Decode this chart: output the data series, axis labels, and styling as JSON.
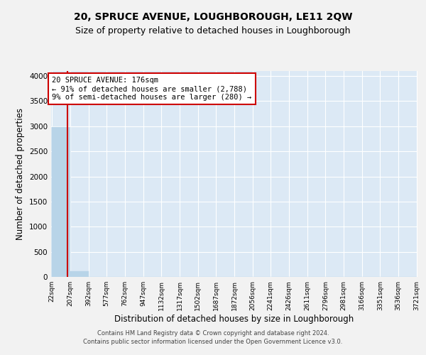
{
  "title": "20, SPRUCE AVENUE, LOUGHBOROUGH, LE11 2QW",
  "subtitle": "Size of property relative to detached houses in Loughborough",
  "xlabel": "Distribution of detached houses by size in Loughborough",
  "ylabel": "Number of detached properties",
  "footer_line1": "Contains HM Land Registry data © Crown copyright and database right 2024.",
  "footer_line2": "Contains public sector information licensed under the Open Government Licence v3.0.",
  "bin_edges": [
    22,
    207,
    392,
    577,
    762,
    947,
    1132,
    1317,
    1502,
    1687,
    1872,
    2056,
    2241,
    2426,
    2611,
    2796,
    2981,
    3166,
    3351,
    3536,
    3721
  ],
  "bar_heights": [
    2980,
    110,
    0,
    0,
    0,
    0,
    0,
    0,
    0,
    0,
    0,
    0,
    0,
    0,
    0,
    0,
    0,
    0,
    0,
    0
  ],
  "bar_color": "#b8d4e8",
  "bar_edgecolor": "#b8d4e8",
  "property_size": 176,
  "annotation_line1": "20 SPRUCE AVENUE: 176sqm",
  "annotation_line2": "← 91% of detached houses are smaller (2,788)",
  "annotation_line3": "9% of semi-detached houses are larger (280) →",
  "red_line_color": "#cc0000",
  "annotation_box_edgecolor": "#cc0000",
  "annotation_box_facecolor": "#ffffff",
  "ylim": [
    0,
    4100
  ],
  "yticks": [
    0,
    500,
    1000,
    1500,
    2000,
    2500,
    3000,
    3500,
    4000
  ],
  "plot_bg_color": "#dce9f5",
  "fig_bg_color": "#f2f2f2",
  "grid_color": "#ffffff",
  "title_fontsize": 10,
  "subtitle_fontsize": 9,
  "tick_label_fontsize": 6.5,
  "xlabel_fontsize": 8.5,
  "ylabel_fontsize": 8.5,
  "annotation_fontsize": 7.5
}
